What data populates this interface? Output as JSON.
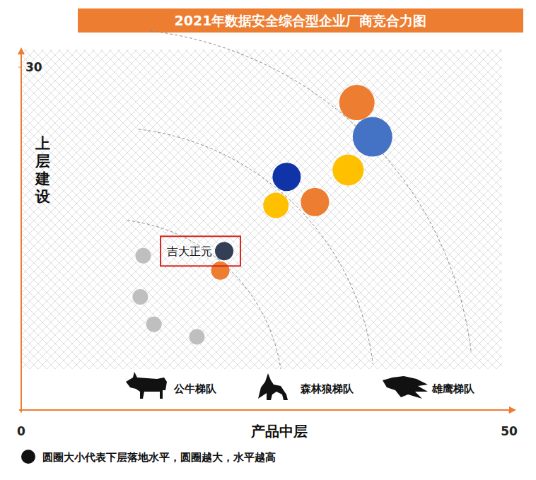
{
  "chart_data": {
    "type": "scatter",
    "title": "2021年数据安全综合型企业厂商竞合力图",
    "x_label": "产品中层",
    "y_label": "上层建设",
    "xlim": [
      0,
      50
    ],
    "ylim": [
      0,
      30
    ],
    "xticks": [
      0,
      50
    ],
    "yticks": [
      30
    ],
    "grid": false,
    "series": [
      {
        "x": [
          34.4,
          36.0,
          33.5,
          27.2,
          30.1,
          26.1,
          20.8,
          20.4,
          12.5,
          12.2,
          13.6,
          18.0
        ],
        "values": [
          26.9,
          23.9,
          21.0,
          20.4,
          18.2,
          17.9,
          13.9,
          12.2,
          13.5,
          9.9,
          7.5,
          6.4
        ],
        "size": [
          25,
          28,
          22,
          20,
          20,
          18,
          13,
          13,
          11,
          11,
          11,
          11
        ],
        "colors": [
          "#ed7d31",
          "#4472c4",
          "#ffc000",
          "#1133a8",
          "#ed7d31",
          "#ffc000",
          "#323f54",
          "#ed7d31",
          "#bfbfbf",
          "#bfbfbf",
          "#bfbfbf",
          "#bfbfbf"
        ],
        "labels": [
          null,
          null,
          null,
          null,
          null,
          null,
          "吉大正元",
          null,
          null,
          null,
          null,
          null
        ]
      }
    ],
    "annotations": {
      "tiers": [
        "公牛梯队",
        "森林狼梯队",
        "雄鹰梯队"
      ],
      "size_note": "圆圈大小代表下层落地水平，圆圈越大，水平越高"
    }
  }
}
